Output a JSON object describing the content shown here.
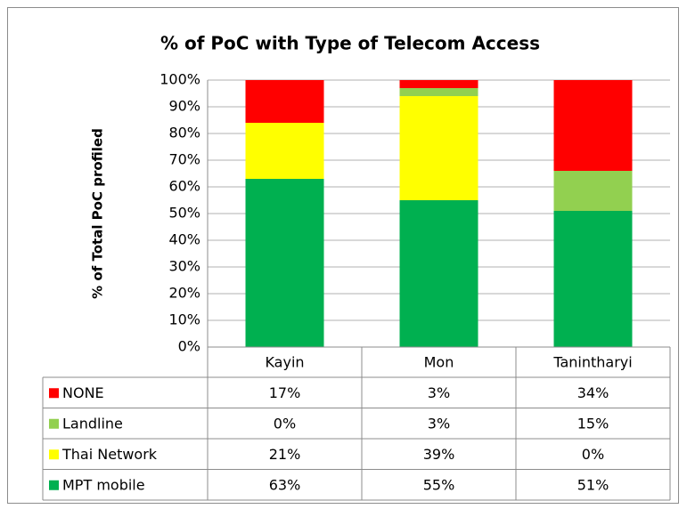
{
  "chart_data": {
    "type": "stacked_bar",
    "title": "% of PoC with Type of Telecom Access",
    "y_label": "% of Total PoC profiled",
    "categories": [
      "Kayin",
      "Mon",
      "Tanintharyi"
    ],
    "series": [
      {
        "name": "MPT mobile",
        "color": "#00b050",
        "values": [
          63,
          55,
          51
        ],
        "value_labels": [
          "63%",
          "55%",
          "51%"
        ]
      },
      {
        "name": "Thai Network",
        "color": "#ffff00",
        "values": [
          21,
          39,
          0
        ],
        "value_labels": [
          "21%",
          "39%",
          "0%"
        ]
      },
      {
        "name": "Landline",
        "color": "#92d050",
        "values": [
          0,
          3,
          15
        ],
        "value_labels": [
          "0%",
          "3%",
          "15%"
        ]
      },
      {
        "name": "NONE",
        "color": "#ff0000",
        "values": [
          17,
          3,
          34
        ],
        "value_labels": [
          "17%",
          "3%",
          "34%"
        ]
      }
    ],
    "ylim": [
      0,
      100
    ],
    "yticks": [
      {
        "value": 0,
        "label": "0%"
      },
      {
        "value": 10,
        "label": "10%"
      },
      {
        "value": 20,
        "label": "20%"
      },
      {
        "value": 30,
        "label": "30%"
      },
      {
        "value": 40,
        "label": "40%"
      },
      {
        "value": 50,
        "label": "50%"
      },
      {
        "value": 60,
        "label": "60%"
      },
      {
        "value": 70,
        "label": "70%"
      },
      {
        "value": 80,
        "label": "80%"
      },
      {
        "value": 90,
        "label": "90%"
      },
      {
        "value": 100,
        "label": "100%"
      }
    ],
    "grid": true
  }
}
